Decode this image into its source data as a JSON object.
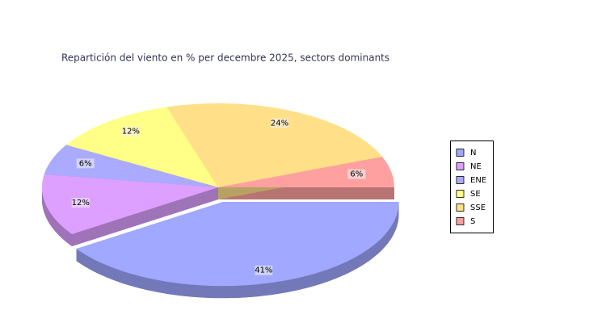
{
  "chart_data": {
    "type": "pie",
    "title": "Repartición del viento en % per decembre 2025, sectors dominants",
    "categories": [
      "N",
      "NE",
      "ENE",
      "SE",
      "SSE",
      "S"
    ],
    "values": [
      41,
      12,
      6,
      12,
      24,
      6
    ],
    "value_labels": [
      "41%",
      "12%",
      "6%",
      "12%",
      "24%",
      "6%"
    ],
    "colors": [
      "#a0a8ff",
      "#dda0ff",
      "#aaaaff",
      "#ffff88",
      "#ffe088",
      "#ffa0a0"
    ],
    "legend": "right"
  }
}
